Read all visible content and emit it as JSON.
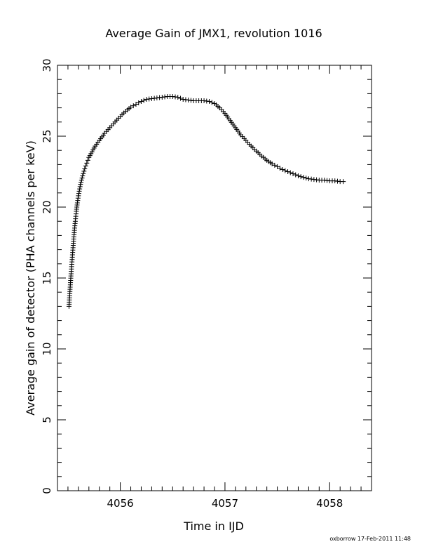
{
  "chart_data": {
    "type": "scatter",
    "title": "Average Gain of JMX1, revolution 1016",
    "xlabel": "Time in IJD",
    "ylabel": "Average gain of detector (PHA channels per keV)",
    "xlim": [
      4055.4,
      4058.4
    ],
    "ylim": [
      0,
      30
    ],
    "x_ticks": [
      "4056",
      "4057",
      "4058"
    ],
    "y_ticks": [
      "0",
      "5",
      "10",
      "15",
      "20",
      "25",
      "30"
    ],
    "marker": "plus",
    "grid": false,
    "series": [
      {
        "x": [
          4055.51,
          4055.52,
          4055.53,
          4055.54,
          4055.55,
          4055.56,
          4055.57,
          4055.58,
          4055.59,
          4055.6,
          4055.62,
          4055.64,
          4055.66,
          4055.68,
          4055.7,
          4055.73,
          4055.76,
          4055.8,
          4055.85,
          4055.9,
          4055.95,
          4056.0,
          4056.05,
          4056.1,
          4056.15,
          4056.2,
          4056.25,
          4056.3,
          4056.35,
          4056.4,
          4056.45,
          4056.5,
          4056.55,
          4056.6,
          4056.65,
          4056.7,
          4056.75,
          4056.8,
          4056.85,
          4056.9,
          4056.95,
          4057.0,
          4057.05,
          4057.1,
          4057.15,
          4057.2,
          4057.25,
          4057.3,
          4057.35,
          4057.4,
          4057.45,
          4057.5,
          4057.55,
          4057.6,
          4057.65,
          4057.7,
          4057.75,
          4057.8,
          4057.85,
          4057.9,
          4057.95,
          4058.0,
          4058.05,
          4058.1,
          4058.13
        ],
        "y": [
          13.0,
          14.2,
          15.3,
          16.3,
          17.3,
          18.2,
          19.0,
          19.7,
          20.3,
          20.8,
          21.6,
          22.2,
          22.7,
          23.1,
          23.5,
          23.9,
          24.3,
          24.7,
          25.2,
          25.6,
          26.0,
          26.4,
          26.75,
          27.05,
          27.25,
          27.45,
          27.6,
          27.65,
          27.7,
          27.75,
          27.8,
          27.8,
          27.75,
          27.6,
          27.55,
          27.5,
          27.5,
          27.5,
          27.45,
          27.3,
          27.0,
          26.6,
          26.1,
          25.6,
          25.1,
          24.7,
          24.3,
          23.95,
          23.6,
          23.3,
          23.05,
          22.85,
          22.65,
          22.5,
          22.35,
          22.2,
          22.1,
          22.0,
          21.95,
          21.9,
          21.9,
          21.85,
          21.85,
          21.8,
          21.8
        ]
      }
    ]
  },
  "footer": "oxborrow 17-Feb-2011 11:48"
}
